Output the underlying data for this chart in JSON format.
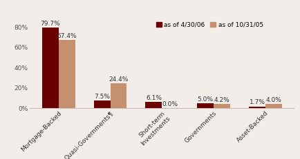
{
  "categories": [
    "Mortgage-Backed",
    "Quasi-Governments¶",
    "Short-term\nInvestments",
    "Governments",
    "Asset-Backed"
  ],
  "series1_values": [
    79.7,
    7.5,
    6.1,
    5.0,
    1.7
  ],
  "series2_values": [
    67.4,
    24.4,
    0.0,
    4.2,
    4.0
  ],
  "series1_label": "as of 4/30/06",
  "series2_label": "as of 10/31/05",
  "series1_color": "#6B0000",
  "series2_color": "#C49070",
  "series1_labels": [
    "79.7%",
    "7.5%",
    "6.1%",
    "5.0%",
    "1.7%"
  ],
  "series2_labels": [
    "67.4%",
    "24.4%",
    "0.0%",
    "4.2%",
    "4.0%"
  ],
  "ylim": [
    0,
    88
  ],
  "yticks": [
    0,
    20,
    40,
    60,
    80
  ],
  "yticklabels": [
    "0%",
    "20%",
    "40%",
    "60%",
    "80%"
  ],
  "bar_width": 0.32,
  "background_color": "#F2EDE8",
  "font_size": 6.5,
  "label_font_size": 6.5,
  "tick_label_font_size": 6.5
}
